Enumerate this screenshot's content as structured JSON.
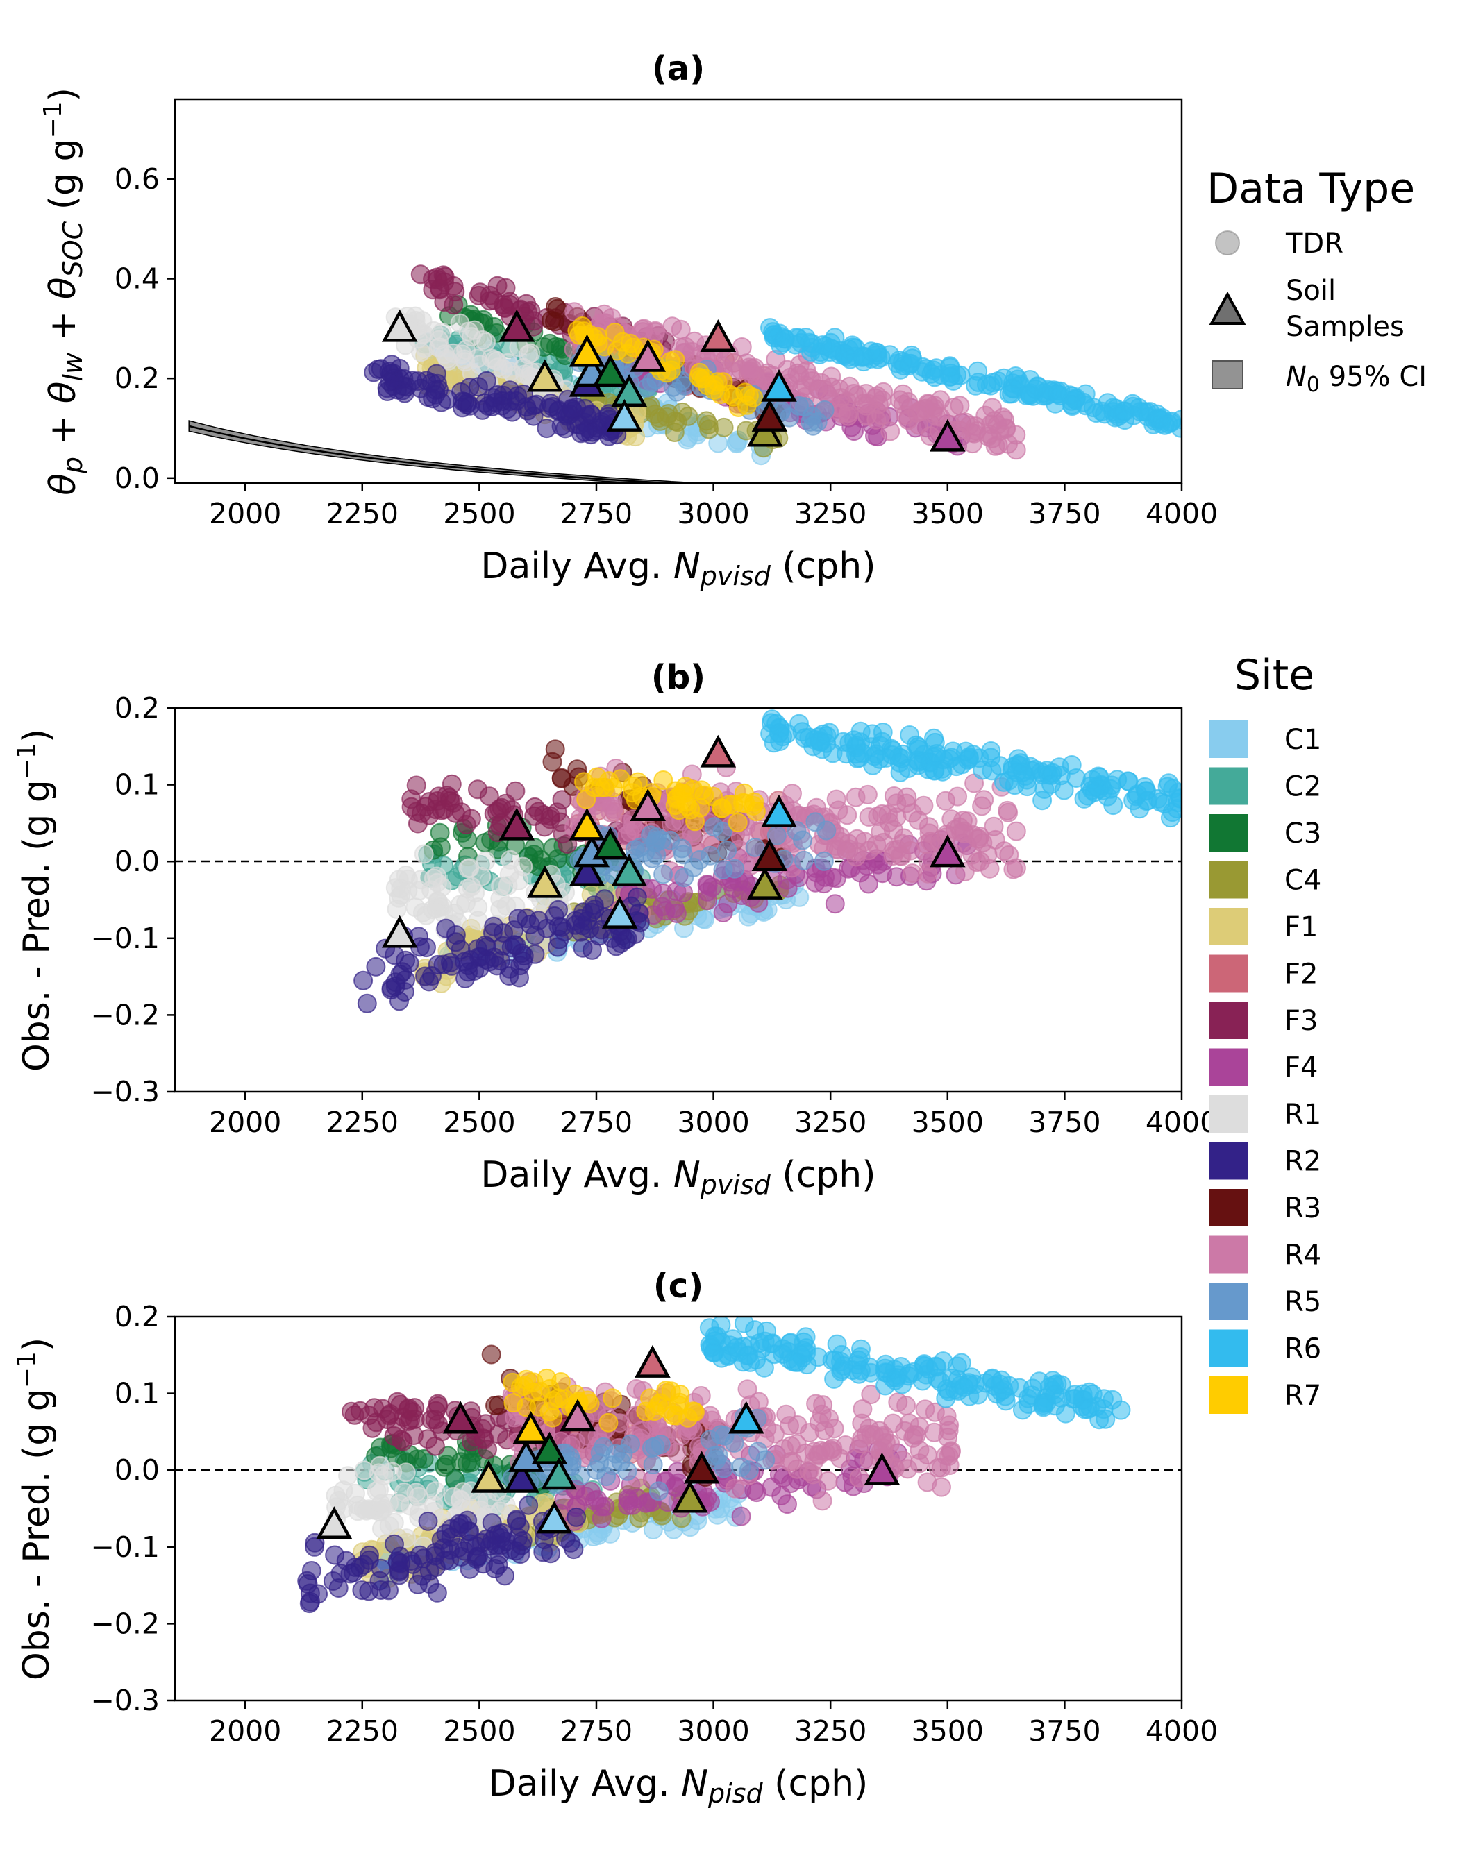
{
  "chart_data": [
    {
      "type": "scatter",
      "panel": "a",
      "title": "(a)",
      "xlabel": "Daily Avg. N_pvisd (cph)",
      "ylabel": "θ_p + θ_lw + θ_SOC (g g⁻¹)",
      "xlim": [
        1850,
        4000
      ],
      "ylim": [
        -0.01,
        0.76
      ],
      "xticks": [
        2000,
        2250,
        2500,
        2750,
        3000,
        3250,
        3500,
        3750,
        4000
      ],
      "yticks": [
        0.0,
        0.2,
        0.4,
        0.6
      ],
      "ytick_labels": [
        "0.0",
        "0.2",
        "0.4",
        "0.6"
      ],
      "fit_curve": "N0 calibration curve with 95% CI band",
      "soil_samples": [
        {
          "site": "R1",
          "x": 2330,
          "y": 0.3
        },
        {
          "site": "F3",
          "x": 2580,
          "y": 0.3
        },
        {
          "site": "F1",
          "x": 2640,
          "y": 0.2
        },
        {
          "site": "R2",
          "x": 2730,
          "y": 0.19
        },
        {
          "site": "R5",
          "x": 2740,
          "y": 0.21
        },
        {
          "site": "R7",
          "x": 2730,
          "y": 0.25
        },
        {
          "site": "C3",
          "x": 2780,
          "y": 0.21
        },
        {
          "site": "C2",
          "x": 2820,
          "y": 0.17
        },
        {
          "site": "C1",
          "x": 2810,
          "y": 0.12
        },
        {
          "site": "R4",
          "x": 2860,
          "y": 0.24
        },
        {
          "site": "F2",
          "x": 3010,
          "y": 0.28
        },
        {
          "site": "C4",
          "x": 3110,
          "y": 0.09
        },
        {
          "site": "R3",
          "x": 3120,
          "y": 0.12
        },
        {
          "site": "R6",
          "x": 3140,
          "y": 0.18
        },
        {
          "site": "F4",
          "x": 3500,
          "y": 0.08
        }
      ]
    },
    {
      "type": "scatter",
      "panel": "b",
      "title": "(b)",
      "xlabel": "Daily Avg. N_pvisd (cph)",
      "ylabel": "Obs. - Pred. (g g⁻¹)",
      "xlim": [
        1850,
        4000
      ],
      "ylim": [
        -0.3,
        0.2
      ],
      "xticks": [
        2000,
        2250,
        2500,
        2750,
        3000,
        3250,
        3500,
        3750,
        4000
      ],
      "yticks": [
        -0.3,
        -0.2,
        -0.1,
        0.0,
        0.1,
        0.2
      ],
      "ytick_labels": [
        "−0.3",
        "−0.2",
        "−0.1",
        "0.0",
        "0.1",
        "0.2"
      ],
      "reference_line_y": 0,
      "soil_samples": [
        {
          "site": "R1",
          "x": 2330,
          "y": -0.095
        },
        {
          "site": "F3",
          "x": 2580,
          "y": 0.045
        },
        {
          "site": "F1",
          "x": 2640,
          "y": -0.03
        },
        {
          "site": "R2",
          "x": 2730,
          "y": -0.015
        },
        {
          "site": "R5",
          "x": 2740,
          "y": 0.01
        },
        {
          "site": "R7",
          "x": 2730,
          "y": 0.045
        },
        {
          "site": "C3",
          "x": 2780,
          "y": 0.02
        },
        {
          "site": "C2",
          "x": 2820,
          "y": -0.015
        },
        {
          "site": "C1",
          "x": 2800,
          "y": -0.07
        },
        {
          "site": "R4",
          "x": 2860,
          "y": 0.07
        },
        {
          "site": "F2",
          "x": 3010,
          "y": 0.14
        },
        {
          "site": "C4",
          "x": 3110,
          "y": -0.032
        },
        {
          "site": "R3",
          "x": 3120,
          "y": 0.005
        },
        {
          "site": "R6",
          "x": 3140,
          "y": 0.062
        },
        {
          "site": "F4",
          "x": 3500,
          "y": 0.01
        }
      ]
    },
    {
      "type": "scatter",
      "panel": "c",
      "title": "(c)",
      "xlabel": "Daily Avg. N_pisd (cph)",
      "ylabel": "Obs. - Pred. (g g⁻¹)",
      "xlim": [
        1850,
        4000
      ],
      "ylim": [
        -0.3,
        0.2
      ],
      "xticks": [
        2000,
        2250,
        2500,
        2750,
        3000,
        3250,
        3500,
        3750,
        4000
      ],
      "yticks": [
        -0.3,
        -0.2,
        -0.1,
        0.0,
        0.1,
        0.2
      ],
      "ytick_labels": [
        "−0.3",
        "−0.2",
        "−0.1",
        "0.0",
        "0.1",
        "0.2"
      ],
      "reference_line_y": 0,
      "soil_samples": [
        {
          "site": "R1",
          "x": 2190,
          "y": -0.072
        },
        {
          "site": "F3",
          "x": 2460,
          "y": 0.065
        },
        {
          "site": "F1",
          "x": 2520,
          "y": -0.012
        },
        {
          "site": "R2",
          "x": 2590,
          "y": -0.012
        },
        {
          "site": "R5",
          "x": 2600,
          "y": 0.015
        },
        {
          "site": "R7",
          "x": 2610,
          "y": 0.052
        },
        {
          "site": "C3",
          "x": 2650,
          "y": 0.025
        },
        {
          "site": "C2",
          "x": 2670,
          "y": -0.008
        },
        {
          "site": "C1",
          "x": 2660,
          "y": -0.065
        },
        {
          "site": "R4",
          "x": 2710,
          "y": 0.068
        },
        {
          "site": "F2",
          "x": 2870,
          "y": 0.138
        },
        {
          "site": "C4",
          "x": 2950,
          "y": -0.038
        },
        {
          "site": "R3",
          "x": 2975,
          "y": 0.0
        },
        {
          "site": "R6",
          "x": 3070,
          "y": 0.065
        },
        {
          "site": "F4",
          "x": 3360,
          "y": -0.002
        }
      ]
    }
  ],
  "data_type_legend": {
    "title": "Data Type",
    "items": [
      "TDR",
      "Soil Samples",
      "N0 95% CI"
    ]
  },
  "site_legend": {
    "title": "Site",
    "items": [
      {
        "label": "C1",
        "color": "#88ccee"
      },
      {
        "label": "C2",
        "color": "#44aa99"
      },
      {
        "label": "C3",
        "color": "#117733"
      },
      {
        "label": "C4",
        "color": "#999933"
      },
      {
        "label": "F1",
        "color": "#ddcc77"
      },
      {
        "label": "F2",
        "color": "#cc6677"
      },
      {
        "label": "F3",
        "color": "#882255"
      },
      {
        "label": "F4",
        "color": "#aa4499"
      },
      {
        "label": "R1",
        "color": "#dddddd"
      },
      {
        "label": "R2",
        "color": "#332288"
      },
      {
        "label": "R3",
        "color": "#661111"
      },
      {
        "label": "R4",
        "color": "#cc79a7"
      },
      {
        "label": "R5",
        "color": "#6699cc"
      },
      {
        "label": "R6",
        "color": "#33bbee"
      },
      {
        "label": "R7",
        "color": "#ffcc00"
      }
    ]
  }
}
